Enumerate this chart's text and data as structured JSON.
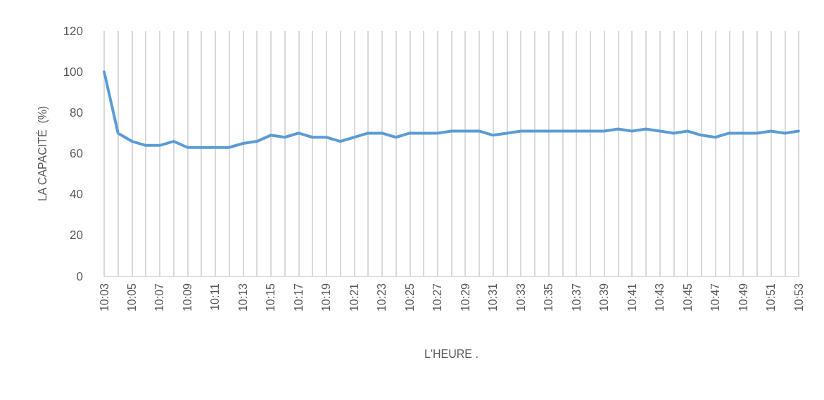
{
  "chart_data": {
    "type": "line",
    "xlabel": "L'HEURE .",
    "ylabel": "LA CAPACITÉ  (%)",
    "categories": [
      "10:03",
      null,
      "10:05",
      null,
      "10:07",
      null,
      "10:09",
      null,
      "10:11",
      null,
      "10:13",
      null,
      "10:15",
      null,
      "10:17",
      null,
      "10:19",
      null,
      "10:21",
      null,
      "10:23",
      null,
      "10:25",
      null,
      "10:27",
      null,
      "10:29",
      null,
      "10:31",
      null,
      "10:33",
      null,
      "10:35",
      null,
      "10:37",
      null,
      "10:39",
      null,
      "10:41",
      null,
      "10:43",
      null,
      "10:45",
      null,
      "10:47",
      null,
      "10:49",
      null,
      "10:51",
      null,
      "10:53"
    ],
    "series": [
      {
        "color": "#5b9bd5",
        "values": [
          100,
          70,
          66,
          64,
          64,
          66,
          63,
          63,
          63,
          63,
          65,
          66,
          69,
          68,
          70,
          68,
          68,
          66,
          68,
          70,
          70,
          68,
          70,
          70,
          70,
          71,
          71,
          71,
          69,
          70,
          71,
          71,
          71,
          71,
          71,
          71,
          71,
          72,
          71,
          72,
          71,
          70,
          71,
          69,
          68,
          70,
          70,
          70,
          71,
          70,
          71
        ]
      }
    ],
    "ylim": [
      0,
      120
    ],
    "yticks": [
      0,
      20,
      40,
      60,
      80,
      100,
      120
    ],
    "grid": "x",
    "marker": "none",
    "line_style": "solid"
  }
}
